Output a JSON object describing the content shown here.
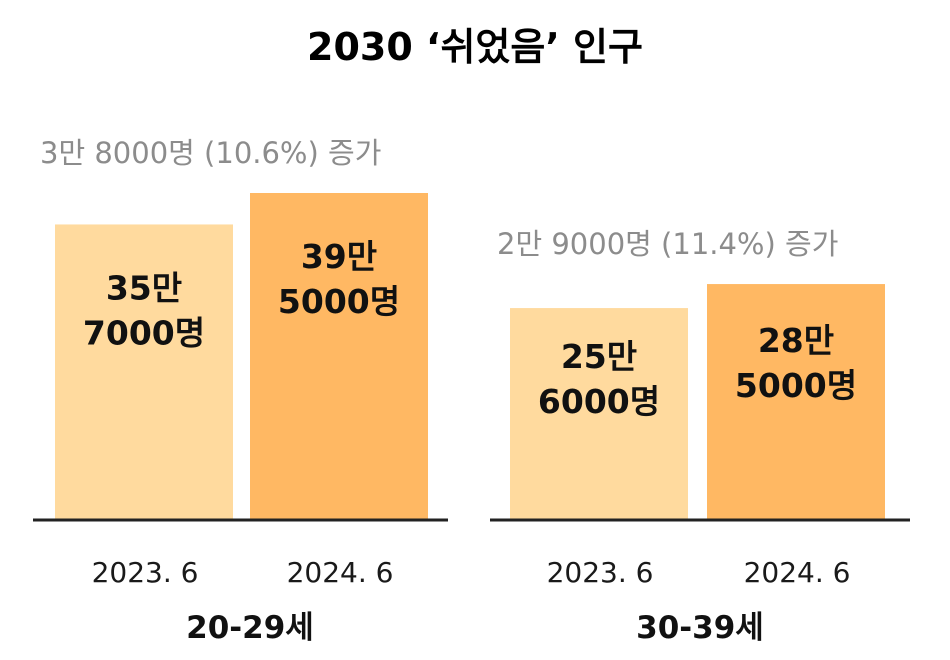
{
  "chart_data": {
    "type": "bar",
    "title": "2030 ‘쉬었음’ 인구",
    "unit": "명",
    "colors": {
      "bar_2023": "#FFDA9E",
      "bar_2024": "#FFB863",
      "axis": "#222222",
      "note_text": "#8C8C8C"
    },
    "groups": [
      {
        "name": "20-29세",
        "increase_label": "3만 8000명 (10.6%) 증가",
        "categories": [
          "2023. 6",
          "2024. 6"
        ],
        "values": [
          357000,
          395000
        ],
        "value_labels": [
          [
            "35만",
            "7000명"
          ],
          [
            "39만",
            "5000명"
          ]
        ]
      },
      {
        "name": "30-39세",
        "increase_label": "2만 9000명 (11.4%) 증가",
        "categories": [
          "2023. 6",
          "2024. 6"
        ],
        "values": [
          256000,
          285000
        ],
        "value_labels": [
          [
            "25만",
            "6000명"
          ],
          [
            "28만",
            "5000명"
          ]
        ]
      }
    ]
  }
}
